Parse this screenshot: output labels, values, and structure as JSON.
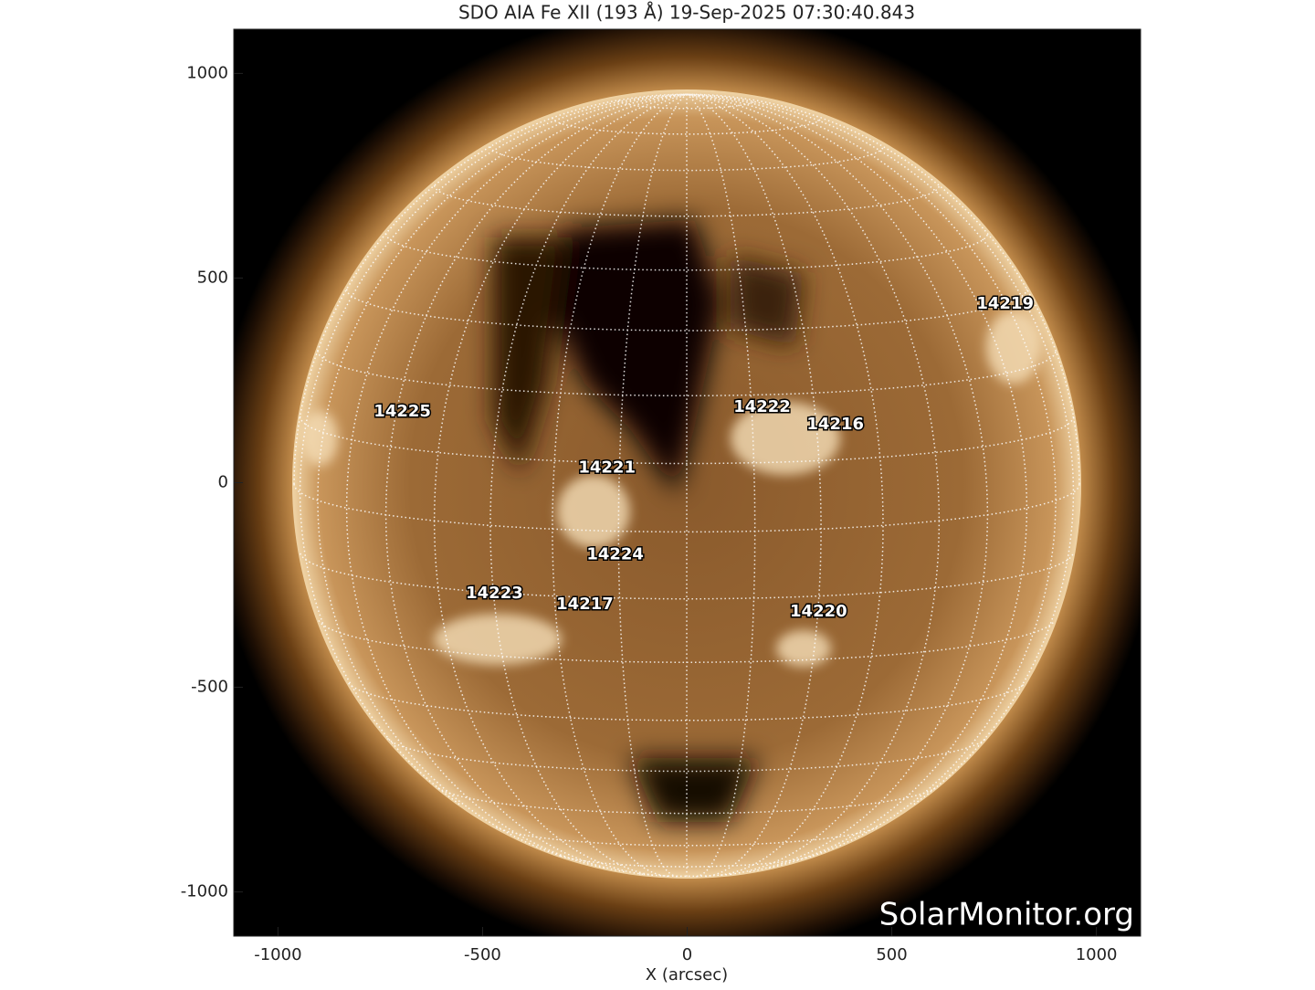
{
  "chart_data": {
    "type": "image",
    "title": "SDO AIA Fe XII (193 Å) 19-Sep-2025 07:30:40.843",
    "x_label": "X (arcsec)",
    "xlim": [
      -1108,
      1108
    ],
    "ylim": [
      -1108,
      1108
    ],
    "xticks": [
      -1000,
      -500,
      0,
      500,
      1000
    ],
    "yticks": [
      -1000,
      -500,
      0,
      500,
      1000
    ],
    "watermark": "SolarMonitor.org",
    "annotations": [
      {
        "text": "14219",
        "x": 777,
        "y": 436
      },
      {
        "text": "14225",
        "x": -696,
        "y": 173
      },
      {
        "text": "14222",
        "x": 183,
        "y": 184
      },
      {
        "text": "14216",
        "x": 362,
        "y": 142
      },
      {
        "text": "14221",
        "x": -196,
        "y": 36
      },
      {
        "text": "14224",
        "x": -176,
        "y": -176
      },
      {
        "text": "14223",
        "x": -471,
        "y": -271
      },
      {
        "text": "14217",
        "x": -250,
        "y": -298
      },
      {
        "text": "14220",
        "x": 321,
        "y": -316
      }
    ]
  }
}
